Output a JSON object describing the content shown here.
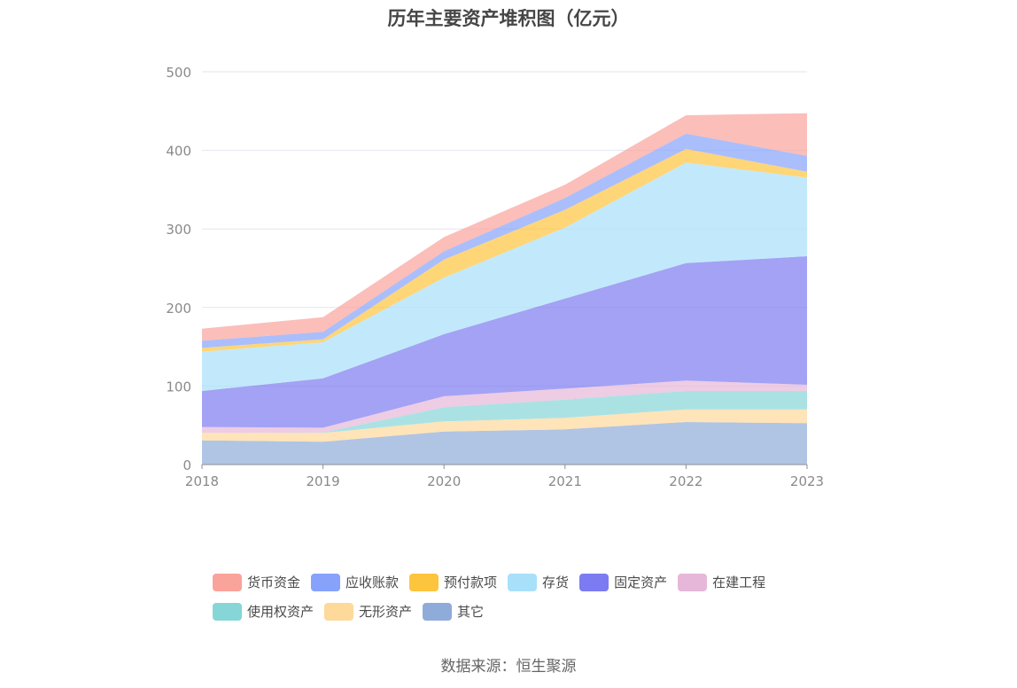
{
  "chart_data": {
    "type": "area",
    "stacked": true,
    "title": "历年主要资产堆积图（亿元）",
    "xlabel": "",
    "ylabel": "",
    "categories": [
      "2018",
      "2019",
      "2020",
      "2021",
      "2022",
      "2023"
    ],
    "ylim": [
      0,
      500
    ],
    "yticks": [
      "0",
      "100",
      "200",
      "300",
      "400",
      "500"
    ],
    "grid": true,
    "legend_position": "bottom",
    "series": [
      {
        "name": "其它",
        "color": "#8fabd9",
        "values": [
          30.8,
          29.0,
          42.0,
          44.8,
          54.2,
          52.7
        ]
      },
      {
        "name": "无形资产",
        "color": "#fdd99a",
        "values": [
          9.5,
          11.3,
          13.0,
          14.7,
          16.1,
          17.6
        ]
      },
      {
        "name": "使用权资产",
        "color": "#86d6d8",
        "values": [
          0.0,
          0.5,
          18.0,
          23.2,
          23.4,
          23.4
        ]
      },
      {
        "name": "在建工程",
        "color": "#e6b7d8",
        "values": [
          7.5,
          6.2,
          14.0,
          14.0,
          13.2,
          7.9
        ]
      },
      {
        "name": "固定资产",
        "color": "#7c7bf1",
        "values": [
          45.9,
          62.8,
          79.0,
          114.7,
          149.6,
          163.6
        ]
      },
      {
        "name": "存货",
        "color": "#a8e0fa",
        "values": [
          50.0,
          46.0,
          72.0,
          90.3,
          128.0,
          100.1
        ]
      },
      {
        "name": "预付款项",
        "color": "#fdc43e",
        "values": [
          4.9,
          3.7,
          23.0,
          22.6,
          17.3,
          7.5
        ]
      },
      {
        "name": "应收账款",
        "color": "#86a2fb",
        "values": [
          9.1,
          9.5,
          10.6,
          15.1,
          19.5,
          20.2
        ]
      },
      {
        "name": "货币资金",
        "color": "#faa39b",
        "values": [
          15.3,
          18.7,
          18.0,
          16.9,
          23.4,
          54.3
        ]
      }
    ],
    "legend_order": [
      "货币资金",
      "应收账款",
      "预付款项",
      "存货",
      "固定资产",
      "在建工程",
      "使用权资产",
      "无形资产",
      "其它"
    ]
  },
  "source": "数据来源：恒生聚源"
}
